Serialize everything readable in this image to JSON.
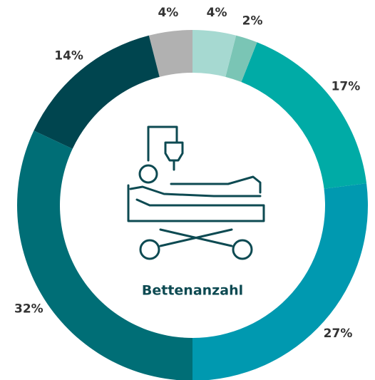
{
  "chart_data": {
    "type": "donut",
    "center_label": "Bettenanzahl",
    "values": [
      4,
      2,
      17,
      27,
      32,
      14,
      4
    ],
    "value_labels": [
      "4%",
      "2%",
      "17%",
      "27%",
      "32%",
      "14%",
      "4%"
    ],
    "colors": [
      "#a6d9d1",
      "#7ac5b5",
      "#00aba6",
      "#0099b0",
      "#006e76",
      "#00454f",
      "#b1b1b1"
    ]
  }
}
